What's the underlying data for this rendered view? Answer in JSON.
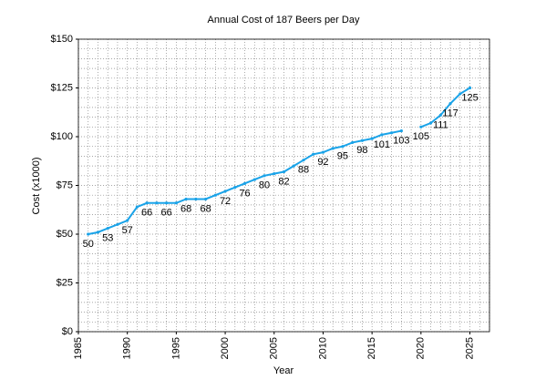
{
  "chart_data": {
    "type": "line",
    "title": "Annual Cost of 187 Beers per Day",
    "x_label": "Year",
    "y_label": "Cost (x1000)",
    "x": [
      1986,
      1987,
      1988,
      1989,
      1990,
      1991,
      1992,
      1993,
      1994,
      1995,
      1996,
      1997,
      1998,
      1999,
      2000,
      2001,
      2002,
      2003,
      2004,
      2005,
      2006,
      2007,
      2008,
      2009,
      2010,
      2011,
      2012,
      2013,
      2014,
      2015,
      2016,
      2017,
      2018,
      2019,
      2020,
      2021,
      2022,
      2023,
      2024,
      2025
    ],
    "series": [
      {
        "name": "Cost",
        "color": "#1aa3e8",
        "values": [
          50,
          51,
          53,
          55,
          57,
          64,
          66,
          66,
          66,
          66,
          68,
          68,
          68,
          70,
          72,
          74,
          76,
          78,
          80,
          81,
          82,
          85,
          88,
          91,
          92,
          94,
          95,
          97,
          98,
          99,
          101,
          102,
          103,
          null,
          105,
          107,
          111,
          117,
          122,
          125
        ],
        "value_labels": [
          "50",
          null,
          "53",
          null,
          "57",
          null,
          "66",
          null,
          "66",
          null,
          "68",
          null,
          "68",
          null,
          "72",
          null,
          "76",
          null,
          "80",
          null,
          "82",
          null,
          "88",
          null,
          "92",
          null,
          "95",
          null,
          "98",
          null,
          "101",
          null,
          "103",
          null,
          "105",
          null,
          "111",
          "117",
          null,
          "125"
        ]
      }
    ],
    "xlim": [
      1985,
      2027
    ],
    "xticks": [
      1985,
      1990,
      1995,
      2000,
      2005,
      2010,
      2015,
      2020,
      2025
    ],
    "ylim": [
      0,
      150
    ],
    "yticks": [
      {
        "value": 0,
        "label": "$0"
      },
      {
        "value": 25,
        "label": "$25"
      },
      {
        "value": 50,
        "label": "$50"
      },
      {
        "value": 75,
        "label": "$75"
      },
      {
        "value": 100,
        "label": "$100"
      },
      {
        "value": 125,
        "label": "$125"
      },
      {
        "value": 150,
        "label": "$150"
      }
    ],
    "grid": true
  }
}
